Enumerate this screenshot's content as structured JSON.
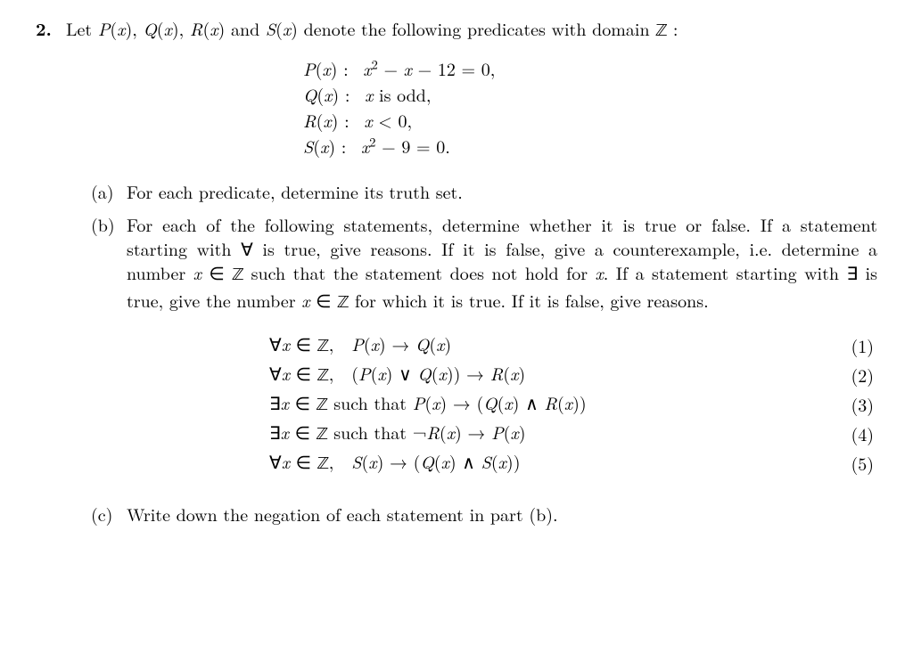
{
  "problem_number": "2.",
  "intro_prefix": "Let ",
  "intro_mid": " denote the following predicates with domain ",
  "intro_colon": " :",
  "predicates_list": "P(x), Q(x), R(x) and S(x)",
  "Z": "ℤ",
  "pred_P_label": "P(x) :",
  "pred_P": "x² − x − 12 = 0,",
  "pred_Q_label": "Q(x) :",
  "pred_Q": "x is odd,",
  "pred_R_label": "R(x) :",
  "pred_R": "x < 0,",
  "pred_S_label": "S(x) :",
  "pred_S": "x² − 9 = 0.",
  "part_a_label": "(a)",
  "part_a_text": "For each predicate, determine its truth set.",
  "part_b_label": "(b)",
  "part_b_text_1": "For each of the following statements, determine whether it is true or false.  If a statement starting with ∀ is true, give reasons.  If it is false, give a counterexample, i.e. determine a number ",
  "part_b_math_1": "x ∈ ℤ",
  "part_b_text_2": " such that the statement does not hold for ",
  "part_b_math_2": "x",
  "part_b_text_3": ". If a statement starting with ∃ is true, give the number ",
  "part_b_math_3": "x ∈ ℤ",
  "part_b_text_4": " for which it is true.  If it is false, give reasons.",
  "stmt1_lhs": "∀x ∈ ℤ, P(x) → Q(x)",
  "stmt1_num": "(1)",
  "stmt2_lhs": "∀x ∈ ℤ, (P(x) ∨ Q(x)) → R(x)",
  "stmt2_num": "(2)",
  "stmt3_lhs": "∃x ∈ ℤ such that P(x) → (Q(x) ∧ R(x))",
  "stmt3_num": "(3)",
  "stmt4_lhs": "∃x ∈ ℤ such that ¬R(x) → P(x)",
  "stmt4_num": "(4)",
  "stmt5_lhs": "∀x ∈ ℤ, S(x) → (Q(x) ∧ S(x))",
  "stmt5_num": "(5)",
  "part_c_label": "(c)",
  "part_c_text": "Write down the negation of each statement in part (b)."
}
